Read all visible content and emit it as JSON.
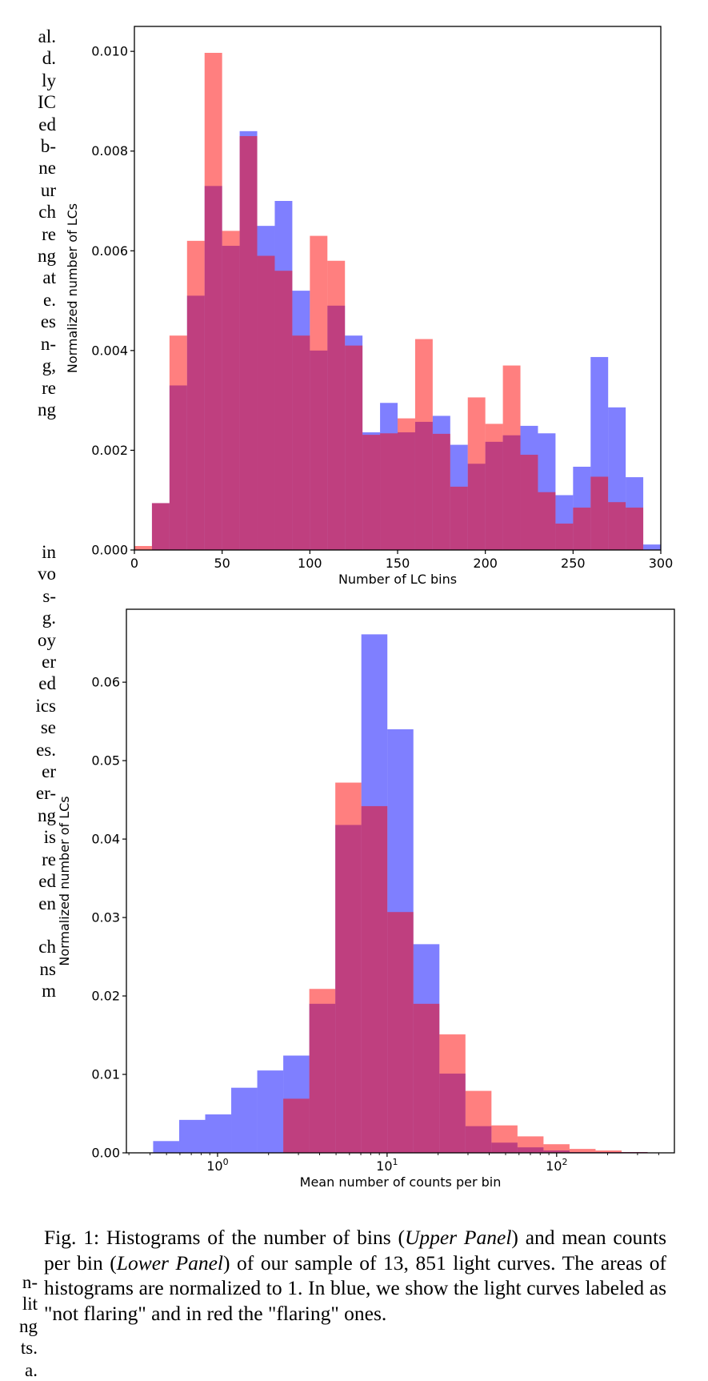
{
  "left_column_fragments": {
    "top": [
      "al.",
      "d.",
      "ly",
      "IC",
      "ed",
      "b-",
      "ne",
      "ur",
      "ch",
      "re",
      "ng",
      "at",
      "e.",
      "es",
      "n-",
      "g,",
      "re",
      "ng"
    ],
    "middle": [
      "in",
      "vo",
      "s-",
      "g.",
      "oy",
      "er",
      "ed",
      "ics",
      "se",
      "es.",
      "er",
      "er-",
      "ng",
      "is",
      "re",
      "ed",
      "en",
      "",
      "ch",
      "ns",
      "m"
    ],
    "bottom": [
      "n-",
      "lit",
      "ng",
      "ts.",
      "a."
    ]
  },
  "caption": {
    "prefix": "Fig. 1: Histograms of the number of bins (",
    "upper_panel": "Upper Panel",
    "mid1": ") and mean counts per bin (",
    "lower_panel": "Lower Panel",
    "rest": ") of our sample of 13, 851 light curves. The areas of histograms are normalized to 1. In blue, we show the light curves labeled as \"not flaring\" and in red the \"flaring\" ones."
  },
  "colors": {
    "not_flaring": "#0000ff",
    "flaring": "#ff0000",
    "alpha": 0.5
  },
  "chart_data": [
    {
      "type": "bar",
      "panel": "upper",
      "title": "",
      "xlabel": "Number of LC bins",
      "ylabel": "Normalized number of LCs",
      "xscale": "linear",
      "xlim": [
        0,
        300
      ],
      "ylim": [
        0,
        0.0105
      ],
      "xticks": [
        0,
        50,
        100,
        150,
        200,
        250,
        300
      ],
      "xtick_labels": [
        "0",
        "50",
        "100",
        "150",
        "200",
        "250",
        "300"
      ],
      "yticks": [
        0,
        0.002,
        0.004,
        0.006,
        0.008,
        0.01
      ],
      "ytick_labels": [
        "0.000",
        "0.002",
        "0.004",
        "0.006",
        "0.008",
        "0.010"
      ],
      "bin_edges": [
        0,
        10,
        20,
        30,
        40,
        50,
        60,
        70,
        80,
        90,
        100,
        110,
        120,
        130,
        140,
        150,
        160,
        170,
        180,
        190,
        200,
        210,
        220,
        230,
        240,
        250,
        260,
        270,
        280,
        290,
        300
      ],
      "grid": false,
      "legend": "none",
      "series": [
        {
          "name": "not flaring",
          "color": "#0000ff",
          "values": [
            0,
            0.00094,
            0.0033,
            0.0051,
            0.0073,
            0.0061,
            0.0084,
            0.0065,
            0.007,
            0.0052,
            0.004,
            0.0049,
            0.0043,
            0.00236,
            0.00295,
            0.00236,
            0.00257,
            0.00269,
            0.00211,
            0.00173,
            0.00217,
            0.0023,
            0.00249,
            0.00234,
            0.0011,
            0.00167,
            0.00387,
            0.00286,
            0.00146,
            0.00011
          ]
        },
        {
          "name": "flaring",
          "color": "#ff0000",
          "values": [
            8e-05,
            0.00094,
            0.0043,
            0.0062,
            0.00997,
            0.0064,
            0.0083,
            0.0059,
            0.0056,
            0.0043,
            0.0063,
            0.0058,
            0.0041,
            0.00231,
            0.00234,
            0.00264,
            0.00423,
            0.00233,
            0.00127,
            0.00306,
            0.00253,
            0.0037,
            0.00191,
            0.00116,
            0.00053,
            0.00085,
            0.00147,
            0.00096,
            0.00085,
            0
          ]
        }
      ]
    },
    {
      "type": "bar",
      "panel": "lower",
      "title": "",
      "xlabel": "Mean number of counts per bin",
      "ylabel": "Normalized number of LCs",
      "xscale": "log",
      "xlim": [
        0.29,
        495
      ],
      "ylim": [
        0,
        0.0693
      ],
      "xticks": [
        1,
        10,
        100
      ],
      "xtick_labels": [
        "10^0",
        "10^1",
        "10^2"
      ],
      "yticks": [
        0,
        0.01,
        0.02,
        0.03,
        0.04,
        0.05,
        0.06
      ],
      "ytick_labels": [
        "0.00",
        "0.01",
        "0.02",
        "0.03",
        "0.04",
        "0.05",
        "0.06"
      ],
      "log_bin_start": 0.417,
      "log_bin_width_dex": 0.1535,
      "grid": false,
      "legend": "none",
      "series": [
        {
          "name": "not flaring",
          "color": "#0000ff",
          "values": [
            0.0015,
            0.0042,
            0.0049,
            0.0083,
            0.0105,
            0.0124,
            0.019,
            0.0418,
            0.0661,
            0.054,
            0.0266,
            0.0101,
            0.0034,
            0.0013,
            0.0007,
            0.0003,
            0.0001,
            0.0001,
            0.0001
          ]
        },
        {
          "name": "flaring",
          "color": "#ff0000",
          "values": [
            0,
            0,
            0,
            0,
            0,
            0.0069,
            0.0209,
            0.0472,
            0.0442,
            0.0307,
            0.019,
            0.0151,
            0.0079,
            0.0035,
            0.0021,
            0.0011,
            0.0005,
            0.0003,
            0.0001
          ]
        }
      ]
    }
  ]
}
